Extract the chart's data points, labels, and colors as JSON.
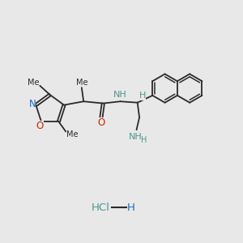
{
  "bg_color": "#e8e8e8",
  "bond_color": "#2a2a2a",
  "N_color": "#1a6bbf",
  "O_color": "#cc2200",
  "H_color": "#4a9990",
  "font_size": 8,
  "bond_lw": 1.3,
  "figsize": [
    3.0,
    3.0
  ],
  "dpi": 100,
  "xlim": [
    0,
    10
  ],
  "ylim": [
    0,
    10
  ],
  "hcl_x": 4.5,
  "hcl_y": 1.4
}
